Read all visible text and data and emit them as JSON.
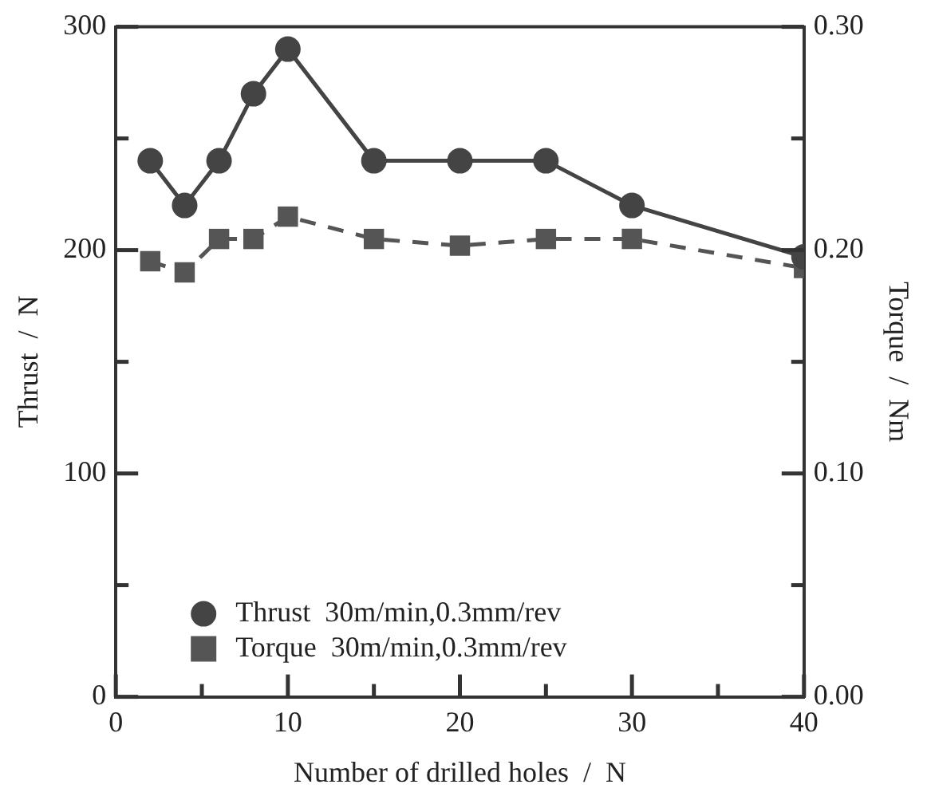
{
  "chart_data": {
    "type": "line",
    "xlabel": "Number of drilled holes  /  N",
    "ylabel": "Thrust  /  N",
    "y2label": "Torque  /  Nm",
    "x": [
      2,
      4,
      6,
      8,
      10,
      15,
      20,
      25,
      30,
      40
    ],
    "xlim": [
      0,
      40
    ],
    "xticks": [
      0,
      {
        "value": 5,
        "label": null
      },
      10,
      {
        "value": 15,
        "label": null
      },
      20,
      {
        "value": 25,
        "label": null
      },
      30,
      {
        "value": 35,
        "label": null
      },
      40
    ],
    "ylim": [
      0,
      300
    ],
    "yticks": [
      0,
      {
        "value": 50,
        "label": null
      },
      100,
      {
        "value": 150,
        "label": null
      },
      200,
      {
        "value": 250,
        "label": null
      },
      300
    ],
    "y2lim": [
      0,
      0.3
    ],
    "y2ticks": [
      "0.00",
      {
        "value": 0.05,
        "label": null
      },
      {
        "value": 0.1,
        "label": "0.10"
      },
      {
        "value": 0.15,
        "label": null
      },
      {
        "value": 0.2,
        "label": "0.20"
      },
      {
        "value": 0.25,
        "label": null
      },
      {
        "value": 0.3,
        "label": "0.30"
      }
    ],
    "legend": "bottom",
    "series": [
      {
        "name": "Thrust  30m/min,0.3mm/rev",
        "color": "#444444",
        "marker": "circle",
        "line_style": "solid",
        "values": [
          240,
          220,
          240,
          270,
          290,
          240,
          240,
          240,
          220,
          197
        ]
      },
      {
        "name": "Torque  30m/min,0.3mm/rev",
        "color": "#555555",
        "marker": "square",
        "line_style": "dashed",
        "axis": "y2",
        "values": [
          0.195,
          0.19,
          0.205,
          0.205,
          0.215,
          0.205,
          0.202,
          0.205,
          0.205,
          0.192
        ]
      }
    ]
  }
}
